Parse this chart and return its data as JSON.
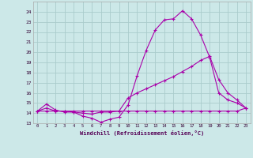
{
  "xlabel": "Windchill (Refroidissement éolien,°C)",
  "bg_color": "#cce8e8",
  "grid_color": "#aacccc",
  "line_color": "#aa00aa",
  "x_ticks": [
    0,
    1,
    2,
    3,
    4,
    5,
    6,
    7,
    8,
    9,
    10,
    11,
    12,
    13,
    14,
    15,
    16,
    17,
    18,
    19,
    20,
    21,
    22,
    23
  ],
  "ylim": [
    13,
    25
  ],
  "yticks": [
    13,
    14,
    15,
    16,
    17,
    18,
    19,
    20,
    21,
    22,
    23,
    24
  ],
  "xlim": [
    -0.5,
    23.5
  ],
  "line1_x": [
    0,
    1,
    2,
    3,
    4,
    5,
    6,
    7,
    8,
    9,
    10,
    11,
    12,
    13,
    14,
    15,
    16,
    17,
    18,
    19,
    20,
    21,
    22,
    23
  ],
  "line1_y": [
    14.2,
    14.9,
    14.3,
    14.1,
    14.1,
    13.7,
    13.5,
    13.1,
    13.4,
    13.6,
    14.8,
    17.7,
    20.2,
    22.2,
    23.2,
    23.3,
    24.1,
    23.3,
    21.7,
    19.5,
    16.0,
    15.3,
    15.0,
    14.5
  ],
  "line2_x": [
    0,
    1,
    2,
    3,
    4,
    5,
    6,
    7,
    8,
    9,
    10,
    11,
    12,
    13,
    14,
    15,
    16,
    17,
    18,
    19,
    20,
    21,
    22,
    23
  ],
  "line2_y": [
    14.2,
    14.5,
    14.2,
    14.2,
    14.1,
    14.0,
    13.9,
    14.1,
    14.1,
    14.2,
    15.5,
    16.0,
    16.4,
    16.8,
    17.2,
    17.6,
    18.1,
    18.6,
    19.2,
    19.6,
    17.3,
    16.0,
    15.3,
    14.5
  ],
  "line3_x": [
    0,
    1,
    2,
    3,
    4,
    5,
    6,
    7,
    8,
    9,
    10,
    11,
    12,
    13,
    14,
    15,
    16,
    17,
    18,
    19,
    20,
    21,
    22,
    23
  ],
  "line3_y": [
    14.2,
    14.2,
    14.2,
    14.2,
    14.2,
    14.2,
    14.2,
    14.2,
    14.2,
    14.2,
    14.2,
    14.2,
    14.2,
    14.2,
    14.2,
    14.2,
    14.2,
    14.2,
    14.2,
    14.2,
    14.2,
    14.2,
    14.2,
    14.5
  ]
}
